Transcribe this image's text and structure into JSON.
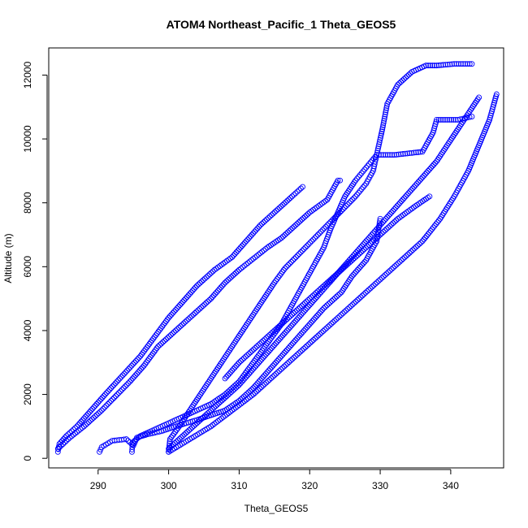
{
  "chart_data": {
    "type": "scatter",
    "title": "ATOM4 Northeast_Pacific_1 Theta_GEOS5",
    "xlabel": "Theta_GEOS5",
    "ylabel": "Altitude (m)",
    "xlim": [
      283,
      347.5
    ],
    "ylim": [
      -300,
      12850
    ],
    "xticks": [
      290,
      300,
      310,
      320,
      330,
      340
    ],
    "yticks": [
      0,
      2000,
      4000,
      6000,
      8000,
      10000,
      12000
    ],
    "marker": "open-circle",
    "color": "#0000ff",
    "grid": false,
    "series": [
      {
        "points": [
          [
            284.3,
            200
          ],
          [
            284.5,
            450
          ],
          [
            285.5,
            700
          ],
          [
            287,
            1000
          ],
          [
            289,
            1500
          ],
          [
            291,
            2000
          ],
          [
            293.5,
            2600
          ],
          [
            296,
            3200
          ],
          [
            298,
            3800
          ],
          [
            300,
            4400
          ],
          [
            302,
            4900
          ],
          [
            304,
            5400
          ],
          [
            306.5,
            5900
          ],
          [
            309,
            6300
          ],
          [
            311,
            6800
          ],
          [
            313,
            7300
          ],
          [
            315.5,
            7800
          ],
          [
            317.5,
            8200
          ],
          [
            319,
            8500
          ]
        ]
      },
      {
        "points": [
          [
            284.3,
            300
          ],
          [
            286,
            650
          ],
          [
            288,
            1000
          ],
          [
            290.5,
            1500
          ],
          [
            292.5,
            1950
          ],
          [
            294.5,
            2400
          ],
          [
            296.5,
            2900
          ],
          [
            298.5,
            3500
          ],
          [
            301,
            4000
          ],
          [
            303.5,
            4500
          ],
          [
            306,
            5000
          ],
          [
            308,
            5500
          ],
          [
            310,
            5900
          ],
          [
            312,
            6250
          ],
          [
            314,
            6600
          ],
          [
            316,
            6900
          ],
          [
            318,
            7300
          ],
          [
            320,
            7700
          ],
          [
            322.5,
            8100
          ],
          [
            324,
            8700
          ],
          [
            324.3,
            8700
          ]
        ]
      },
      {
        "points": [
          [
            290.2,
            200
          ],
          [
            290.5,
            350
          ],
          [
            292,
            550
          ],
          [
            294,
            600
          ],
          [
            295,
            400
          ],
          [
            295.5,
            650
          ],
          [
            297,
            750
          ],
          [
            299,
            850
          ],
          [
            301,
            1000
          ],
          [
            302.5,
            1100
          ],
          [
            304,
            1200
          ],
          [
            306,
            1350
          ],
          [
            308,
            1500
          ],
          [
            310,
            1800
          ],
          [
            312,
            2200
          ],
          [
            314,
            2700
          ],
          [
            316,
            3200
          ],
          [
            318,
            3700
          ],
          [
            320,
            4200
          ],
          [
            322,
            4700
          ],
          [
            324.5,
            5200
          ],
          [
            326,
            5700
          ],
          [
            328,
            6200
          ],
          [
            329.5,
            6800
          ],
          [
            330,
            7500
          ]
        ]
      },
      {
        "points": [
          [
            294.8,
            200
          ],
          [
            294.9,
            500
          ],
          [
            296,
            700
          ],
          [
            298,
            900
          ],
          [
            300,
            1100
          ],
          [
            302,
            1300
          ],
          [
            304,
            1500
          ],
          [
            306,
            1700
          ],
          [
            308,
            2000
          ],
          [
            310,
            2400
          ],
          [
            312,
            3000
          ],
          [
            314,
            3600
          ],
          [
            316,
            4200
          ],
          [
            317.5,
            4800
          ],
          [
            319,
            5400
          ],
          [
            320.5,
            6000
          ],
          [
            322,
            6600
          ],
          [
            323,
            7200
          ],
          [
            324,
            7700
          ],
          [
            325,
            8200
          ],
          [
            326.5,
            8700
          ],
          [
            328,
            9100
          ],
          [
            329.5,
            9500
          ],
          [
            332,
            9500
          ],
          [
            336,
            9600
          ],
          [
            337.5,
            10200
          ],
          [
            338,
            10600
          ],
          [
            341,
            10600
          ],
          [
            343,
            10700
          ]
        ]
      },
      {
        "points": [
          [
            300,
            200
          ],
          [
            300.2,
            600
          ],
          [
            301.5,
            1000
          ],
          [
            303,
            1500
          ],
          [
            304.5,
            2000
          ],
          [
            306,
            2500
          ],
          [
            307.5,
            3000
          ],
          [
            309,
            3500
          ],
          [
            310.5,
            4000
          ],
          [
            312,
            4500
          ],
          [
            313.5,
            5000
          ],
          [
            315,
            5500
          ],
          [
            316.5,
            5950
          ],
          [
            318.5,
            6400
          ],
          [
            320.5,
            6850
          ],
          [
            322.5,
            7300
          ],
          [
            324.5,
            7750
          ],
          [
            326.5,
            8200
          ],
          [
            328,
            8600
          ],
          [
            329,
            9000
          ],
          [
            329.5,
            9500
          ],
          [
            330.3,
            10300
          ],
          [
            331,
            11100
          ],
          [
            332.5,
            11700
          ],
          [
            334.5,
            12100
          ],
          [
            336.5,
            12300
          ],
          [
            338,
            12300
          ],
          [
            340.5,
            12350
          ],
          [
            343,
            12350
          ]
        ]
      },
      {
        "points": [
          [
            300,
            300
          ],
          [
            302,
            700
          ],
          [
            304,
            1100
          ],
          [
            306,
            1500
          ],
          [
            308,
            1900
          ],
          [
            310,
            2300
          ],
          [
            312,
            2800
          ],
          [
            314,
            3300
          ],
          [
            316,
            3800
          ],
          [
            318,
            4300
          ],
          [
            320,
            4800
          ],
          [
            322,
            5300
          ],
          [
            324,
            5800
          ],
          [
            326,
            6300
          ],
          [
            328,
            6800
          ],
          [
            330,
            7300
          ],
          [
            332,
            7800
          ],
          [
            334,
            8300
          ],
          [
            336,
            8800
          ],
          [
            338,
            9300
          ],
          [
            339.5,
            9800
          ],
          [
            341,
            10300
          ],
          [
            342.5,
            10800
          ],
          [
            344,
            11300
          ]
        ]
      },
      {
        "points": [
          [
            300,
            200
          ],
          [
            303,
            600
          ],
          [
            306,
            1000
          ],
          [
            309,
            1500
          ],
          [
            312,
            2000
          ],
          [
            315,
            2600
          ],
          [
            318,
            3200
          ],
          [
            321,
            3800
          ],
          [
            324,
            4400
          ],
          [
            327,
            5000
          ],
          [
            330,
            5600
          ],
          [
            333,
            6200
          ],
          [
            336,
            6800
          ],
          [
            338.5,
            7500
          ],
          [
            340.5,
            8200
          ],
          [
            342.5,
            9000
          ],
          [
            344,
            9800
          ],
          [
            345.5,
            10600
          ],
          [
            346.5,
            11400
          ]
        ]
      },
      {
        "points": [
          [
            308,
            2500
          ],
          [
            310,
            3000
          ],
          [
            312.5,
            3500
          ],
          [
            315,
            4000
          ],
          [
            317.5,
            4500
          ],
          [
            320,
            5000
          ],
          [
            322.5,
            5500
          ],
          [
            325,
            6000
          ],
          [
            327.5,
            6500
          ],
          [
            330,
            7000
          ],
          [
            332.5,
            7500
          ],
          [
            335,
            7900
          ],
          [
            337,
            8200
          ]
        ]
      }
    ]
  }
}
